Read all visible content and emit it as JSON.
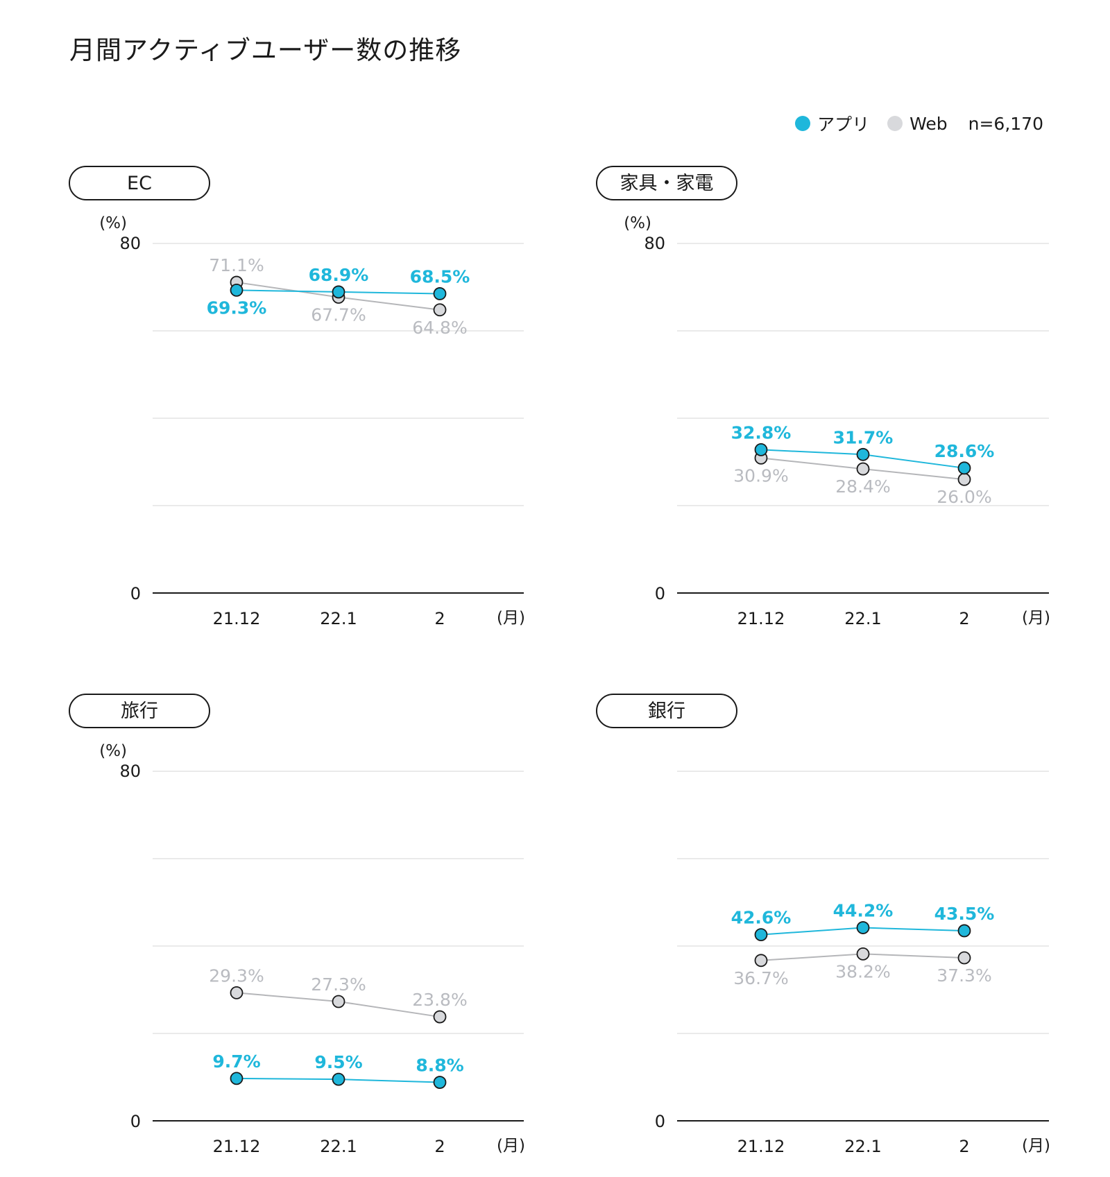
{
  "title": "月間アクティブユーザー数の推移",
  "legend": {
    "items": [
      {
        "label": "アプリ",
        "color": "#1fb7db"
      },
      {
        "label": "Web",
        "color": "#d8d9dc"
      }
    ],
    "n_label": "n=6,170"
  },
  "colors": {
    "app": "#1fb7db",
    "web": "#d8d9dc",
    "web_text": "#b9bbc0",
    "web_line": "#b5b6b9",
    "grid": "#e3e3e3",
    "axis": "#1a1a1a"
  },
  "chart_data": [
    {
      "type": "line",
      "panel_label": "EC",
      "categories": [
        "21.12",
        "22.1",
        "2"
      ],
      "x_unit": "(月)",
      "y_unit": "(%)",
      "y_tick_labels": [
        "80",
        "0"
      ],
      "ylim": [
        0,
        80
      ],
      "grid": true,
      "series": [
        {
          "name": "アプリ",
          "values": [
            69.3,
            68.9,
            68.5
          ],
          "labels": [
            "69.3%",
            "68.9%",
            "68.5%"
          ],
          "label_pos": [
            "below",
            "above",
            "above"
          ]
        },
        {
          "name": "Web",
          "values": [
            71.1,
            67.7,
            64.8
          ],
          "labels": [
            "71.1%",
            "67.7%",
            "64.8%"
          ],
          "label_pos": [
            "above",
            "below",
            "below"
          ]
        }
      ]
    },
    {
      "type": "line",
      "panel_label": "家具・家電",
      "categories": [
        "21.12",
        "22.1",
        "2"
      ],
      "x_unit": "(月)",
      "y_unit": "(%)",
      "y_tick_labels": [
        "80",
        "0"
      ],
      "ylim": [
        0,
        80
      ],
      "grid": true,
      "series": [
        {
          "name": "アプリ",
          "values": [
            32.8,
            31.7,
            28.6
          ],
          "labels": [
            "32.8%",
            "31.7%",
            "28.6%"
          ],
          "label_pos": [
            "above",
            "above",
            "above"
          ]
        },
        {
          "name": "Web",
          "values": [
            30.9,
            28.4,
            26.0
          ],
          "labels": [
            "30.9%",
            "28.4%",
            "26.0%"
          ],
          "label_pos": [
            "below",
            "below",
            "below"
          ]
        }
      ]
    },
    {
      "type": "line",
      "panel_label": "旅行",
      "categories": [
        "21.12",
        "22.1",
        "2"
      ],
      "x_unit": "(月)",
      "y_unit": "(%)",
      "y_tick_labels": [
        "80",
        "0"
      ],
      "ylim": [
        0,
        80
      ],
      "grid": true,
      "series": [
        {
          "name": "アプリ",
          "values": [
            9.7,
            9.5,
            8.8
          ],
          "labels": [
            "9.7%",
            "9.5%",
            "8.8%"
          ],
          "label_pos": [
            "above",
            "above",
            "above"
          ]
        },
        {
          "name": "Web",
          "values": [
            29.3,
            27.3,
            23.8
          ],
          "labels": [
            "29.3%",
            "27.3%",
            "23.8%"
          ],
          "label_pos": [
            "above",
            "above",
            "above"
          ]
        }
      ]
    },
    {
      "type": "line",
      "panel_label": "銀行",
      "categories": [
        "21.12",
        "22.1",
        "2"
      ],
      "x_unit": "(月)",
      "y_unit": "",
      "y_tick_labels": [
        "",
        "0"
      ],
      "ylim": [
        0,
        80
      ],
      "grid": true,
      "series": [
        {
          "name": "アプリ",
          "values": [
            42.6,
            44.2,
            43.5
          ],
          "labels": [
            "42.6%",
            "44.2%",
            "43.5%"
          ],
          "label_pos": [
            "above",
            "above",
            "above"
          ]
        },
        {
          "name": "Web",
          "values": [
            36.7,
            38.2,
            37.3
          ],
          "labels": [
            "36.7%",
            "38.2%",
            "37.3%"
          ],
          "label_pos": [
            "below",
            "below",
            "below"
          ]
        }
      ]
    }
  ]
}
